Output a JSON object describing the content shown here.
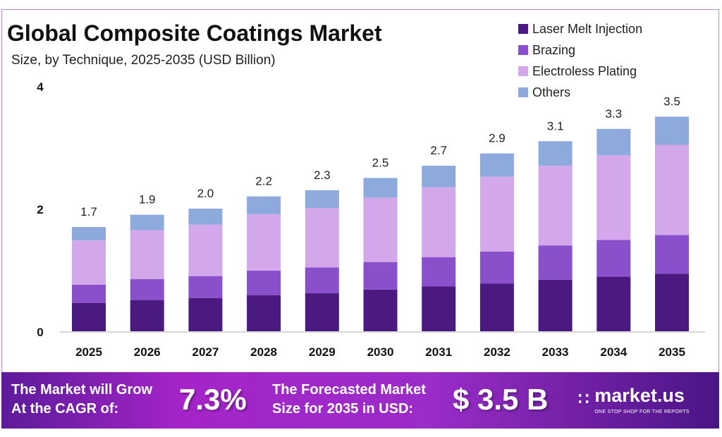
{
  "header": {
    "title": "Global Composite Coatings Market",
    "subtitle": "Size, by Technique, 2025-2035 (USD Billion)"
  },
  "chart_data": {
    "type": "bar",
    "stacked": true,
    "title": "Global Composite Coatings Market",
    "subtitle": "Size, by Technique, 2025-2035 (USD Billion)",
    "categories": [
      "2025",
      "2026",
      "2027",
      "2028",
      "2029",
      "2030",
      "2031",
      "2032",
      "2033",
      "2034",
      "2035"
    ],
    "series": [
      {
        "name": "Laser Melt Injection",
        "color": "#4b1a80",
        "values": [
          0.46,
          0.51,
          0.54,
          0.59,
          0.62,
          0.68,
          0.73,
          0.78,
          0.84,
          0.89,
          0.94
        ]
      },
      {
        "name": "Brazing",
        "color": "#8a4fca",
        "values": [
          0.3,
          0.34,
          0.36,
          0.4,
          0.42,
          0.45,
          0.48,
          0.52,
          0.56,
          0.6,
          0.63
        ]
      },
      {
        "name": "Electroless Plating",
        "color": "#d3a8ea",
        "values": [
          0.72,
          0.8,
          0.84,
          0.92,
          0.97,
          1.05,
          1.14,
          1.22,
          1.3,
          1.38,
          1.47
        ]
      },
      {
        "name": "Others",
        "color": "#8eaadc",
        "values": [
          0.22,
          0.25,
          0.26,
          0.29,
          0.29,
          0.32,
          0.35,
          0.38,
          0.4,
          0.43,
          0.46
        ]
      }
    ],
    "totals": [
      "1.7",
      "1.9",
      "2.0",
      "2.2",
      "2.3",
      "2.5",
      "2.7",
      "2.9",
      "3.1",
      "3.3",
      "3.5"
    ],
    "yticks": [
      "0",
      "2",
      "4"
    ],
    "ylim": [
      0,
      4
    ],
    "grid": false,
    "legend": "top-right"
  },
  "footer": {
    "cagr_label_line1": "The Market will Grow",
    "cagr_label_line2": "At the CAGR of:",
    "cagr_value": "7.3%",
    "forecast_label_line1": "The Forecasted Market",
    "forecast_label_line2": "Size for 2035 in USD:",
    "forecast_value": "$ 3.5 B",
    "brand_name": "market.us",
    "brand_tagline": "ONE STOP SHOP FOR THE REPORTS"
  }
}
